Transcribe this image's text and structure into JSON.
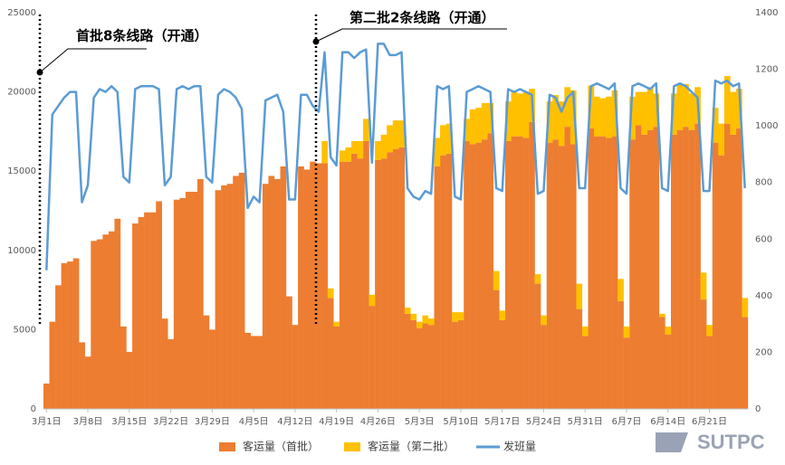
{
  "chart_data": {
    "type": "bar-line",
    "categories": [
      "3月1日",
      null,
      null,
      null,
      null,
      null,
      null,
      "3月8日",
      null,
      null,
      null,
      null,
      null,
      null,
      "3月15日",
      null,
      null,
      null,
      null,
      null,
      null,
      "3月22日",
      null,
      null,
      null,
      null,
      null,
      null,
      "3月29日",
      null,
      null,
      null,
      null,
      null,
      null,
      "4月5日",
      null,
      null,
      null,
      null,
      null,
      null,
      "4月12日",
      null,
      null,
      null,
      null,
      null,
      null,
      "4月19日",
      null,
      null,
      null,
      null,
      null,
      null,
      "4月26日",
      null,
      null,
      null,
      null,
      null,
      null,
      "5月3日",
      null,
      null,
      null,
      null,
      null,
      null,
      "5月10日",
      null,
      null,
      null,
      null,
      null,
      null,
      "5月17日",
      null,
      null,
      null,
      null,
      null,
      null,
      "5月24日",
      null,
      null,
      null,
      null,
      null,
      null,
      "5月31日",
      null,
      null,
      null,
      null,
      null,
      null,
      "6月7日",
      null,
      null,
      null,
      null,
      null,
      null,
      "6月14日",
      null,
      null,
      null,
      null,
      null,
      null,
      "6月21日",
      null,
      null,
      null,
      null,
      null,
      null
    ],
    "series": [
      {
        "name": "客运量（首批）",
        "color": "#ED7D31",
        "kind": "bar",
        "values": [
          1600,
          5500,
          7800,
          9200,
          9300,
          9500,
          4200,
          3300,
          10600,
          10700,
          11000,
          11200,
          12000,
          5200,
          3600,
          11700,
          12100,
          12400,
          12400,
          13100,
          5700,
          4400,
          13200,
          13300,
          13700,
          13700,
          14500,
          5900,
          5000,
          13800,
          14100,
          14200,
          14700,
          14900,
          4800,
          4600,
          4600,
          14200,
          14700,
          14500,
          15300,
          7100,
          5300,
          15300,
          15100,
          15600,
          15500,
          15500,
          7000,
          5200,
          15600,
          15600,
          16100,
          15800,
          16900,
          6500,
          15700,
          15800,
          16200,
          16400,
          16500,
          6000,
          5600,
          5100,
          5400,
          5300,
          15300,
          16000,
          16100,
          5500,
          5600,
          16900,
          16700,
          16800,
          17000,
          17400,
          7500,
          5600,
          16900,
          17200,
          17200,
          17100,
          18100,
          7900,
          5300,
          16800,
          17000,
          16600,
          17800,
          16700,
          6300,
          4600,
          17700,
          17200,
          17200,
          17100,
          17200,
          6800,
          4500,
          17000,
          17900,
          17300,
          17600,
          17800,
          5800,
          4700,
          17300,
          17600,
          17800,
          17600,
          18000,
          6900,
          4600,
          16800,
          16000,
          18000,
          17300,
          17700,
          5800
        ]
      },
      {
        "name": "客运量（第二批）",
        "color": "#FFC000",
        "kind": "bar",
        "values": [
          0,
          0,
          0,
          0,
          0,
          0,
          0,
          0,
          0,
          0,
          0,
          0,
          0,
          0,
          0,
          0,
          0,
          0,
          0,
          0,
          0,
          0,
          0,
          0,
          0,
          0,
          0,
          0,
          0,
          0,
          0,
          0,
          0,
          0,
          0,
          0,
          0,
          0,
          0,
          0,
          0,
          0,
          0,
          0,
          0,
          0,
          0,
          1400,
          600,
          300,
          700,
          900,
          800,
          1100,
          1400,
          700,
          1200,
          1500,
          1700,
          1800,
          1700,
          400,
          400,
          400,
          500,
          400,
          1800,
          1900,
          1900,
          600,
          500,
          1400,
          2200,
          2200,
          2300,
          1900,
          1200,
          600,
          2500,
          2800,
          2700,
          2900,
          2100,
          600,
          600,
          2600,
          2800,
          2800,
          2500,
          3400,
          1600,
          600,
          2700,
          2500,
          2400,
          2600,
          2900,
          1400,
          700,
          2700,
          2100,
          2700,
          2700,
          2100,
          200,
          500,
          2600,
          2900,
          2700,
          2300,
          2300,
          1700,
          700,
          2200,
          2000,
          3000,
          2700,
          2500,
          1200
        ]
      },
      {
        "name": "发班量",
        "color": "#5B9BD5",
        "kind": "line",
        "axis": "y2",
        "values": [
          490,
          1040,
          1070,
          1100,
          1120,
          1120,
          730,
          790,
          1100,
          1130,
          1120,
          1140,
          1120,
          820,
          800,
          1130,
          1140,
          1140,
          1140,
          1130,
          790,
          820,
          1130,
          1140,
          1130,
          1140,
          1140,
          820,
          800,
          1110,
          1130,
          1120,
          1100,
          1060,
          710,
          750,
          730,
          1090,
          1100,
          1110,
          1050,
          740,
          740,
          1110,
          1110,
          1070,
          1050,
          1260,
          890,
          860,
          1260,
          1260,
          1240,
          1260,
          1270,
          870,
          1290,
          1290,
          1250,
          1250,
          1260,
          780,
          750,
          740,
          770,
          760,
          1140,
          1130,
          1140,
          750,
          740,
          1120,
          1130,
          1140,
          1130,
          1120,
          780,
          770,
          1130,
          1120,
          1130,
          1120,
          1110,
          760,
          770,
          1110,
          1100,
          1050,
          1100,
          1120,
          780,
          780,
          1140,
          1150,
          1140,
          1130,
          1150,
          780,
          760,
          1140,
          1150,
          1140,
          1130,
          1150,
          780,
          770,
          1140,
          1150,
          1140,
          1120,
          1100,
          770,
          770,
          1160,
          1150,
          1160,
          1140,
          1150,
          780
        ]
      }
    ],
    "ylim": [
      0,
      25000
    ],
    "yticks": [
      0,
      5000,
      10000,
      15000,
      20000,
      25000
    ],
    "y2lim": [
      0,
      1400
    ],
    "y2ticks": [
      0,
      200,
      400,
      600,
      800,
      1000,
      1200,
      1400
    ],
    "stacked": true,
    "grid": false,
    "legend": "bottom",
    "annotations": [
      "首批8条线路（开通）",
      "第二批2条线路（开通）"
    ],
    "watermark": "SUTPC"
  }
}
